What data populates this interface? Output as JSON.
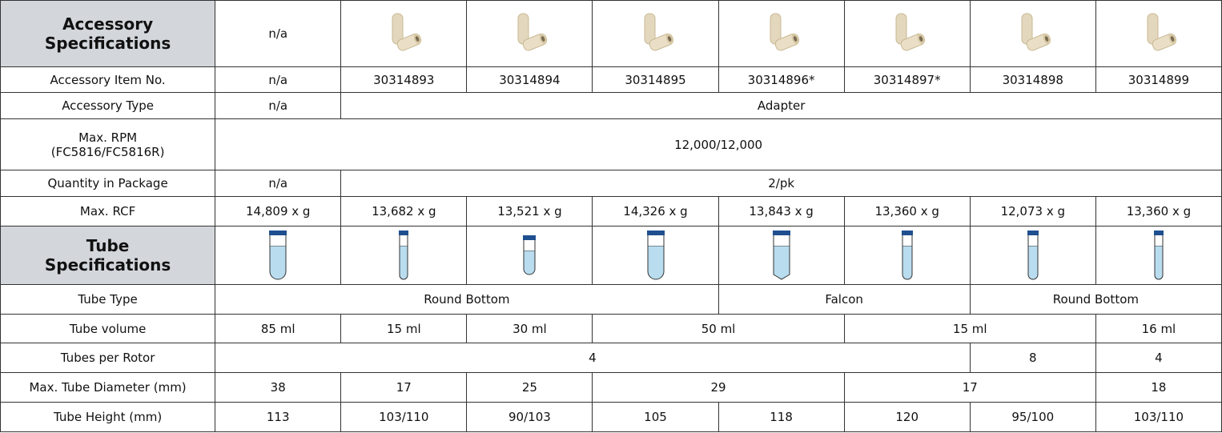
{
  "table": {
    "rows": [
      {
        "label": [
          "Accessory",
          "Specifications"
        ],
        "cells": [
          "n/a"
        ]
      },
      {
        "label": [
          "Accessory Item No."
        ],
        "cells": [
          "n/a",
          "30314893",
          "30314894",
          "30314895",
          "30314896*",
          "30314897*",
          "30314898",
          "30314899"
        ]
      },
      {
        "label": [
          "Accessory Type"
        ],
        "cells": [
          "n/a",
          "Adapter"
        ]
      },
      {
        "label": [
          "Max. RPM",
          "(FC5816/FC5816R)"
        ],
        "cells": [
          "12,000/12,000"
        ]
      },
      {
        "label": [
          "Quantity in Package"
        ],
        "cells": [
          "n/a",
          "2/pk"
        ]
      },
      {
        "label": [
          "Max. RCF"
        ],
        "cells": [
          "14,809 x g",
          "13,682 x g",
          "13,521 x g",
          "14,326 x g",
          "13,843 x g",
          "13,360 x g",
          "12,073 x g",
          "13,360 x g"
        ]
      },
      {
        "label": [
          "Tube",
          "Specifications"
        ],
        "cells": []
      },
      {
        "label": [
          "Tube Type"
        ],
        "cells": [
          "Round Bottom",
          "Falcon",
          "Round Bottom"
        ]
      },
      {
        "label": [
          "Tube volume"
        ],
        "cells": [
          "85 ml",
          "15 ml",
          "30 ml",
          "50 ml",
          "15 ml",
          "16 ml"
        ]
      },
      {
        "label": [
          "Tubes per Rotor"
        ],
        "cells": [
          "4",
          "8",
          "4"
        ]
      },
      {
        "label": [
          "Max. Tube Diameter (mm)"
        ],
        "cells": [
          "38",
          "17",
          "25",
          "29",
          "17",
          "18"
        ]
      },
      {
        "label": [
          "Tube Height (mm)"
        ],
        "cells": [
          "113",
          "103/110",
          "90/103",
          "105",
          "118",
          "120",
          "95/100",
          "103/110"
        ]
      }
    ]
  }
}
